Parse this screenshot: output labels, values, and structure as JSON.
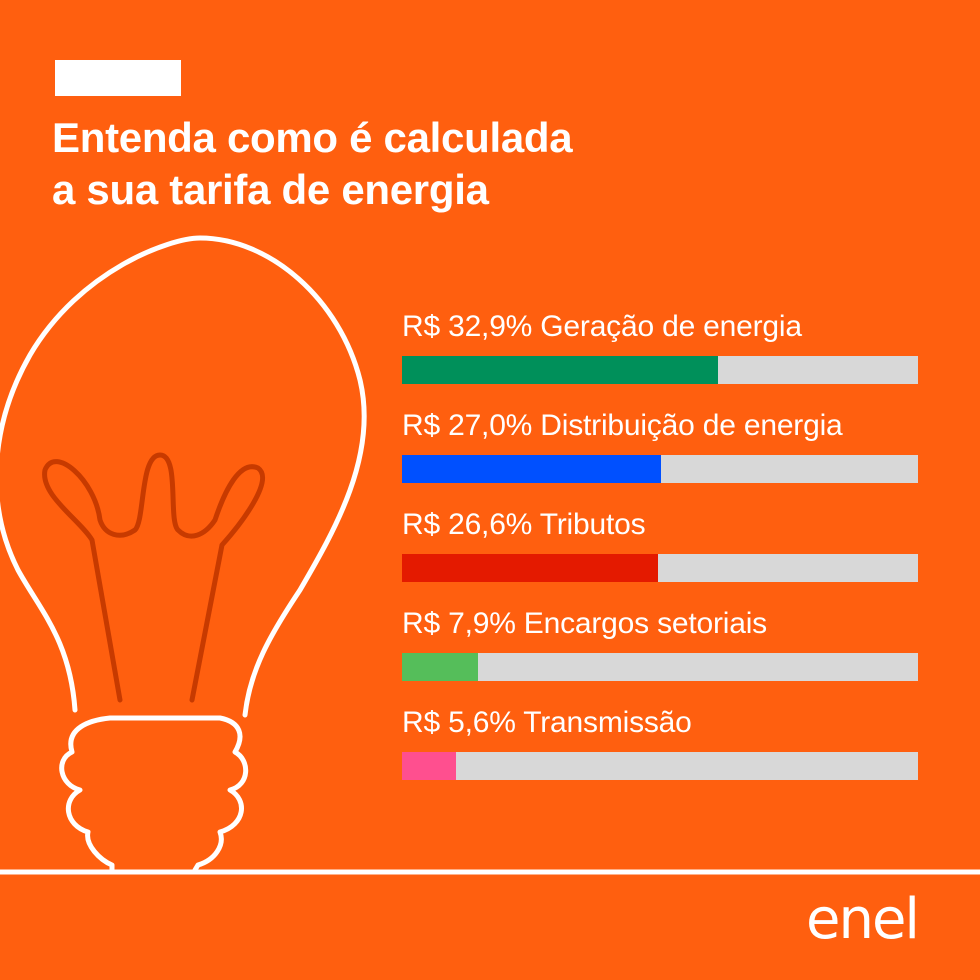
{
  "header": {
    "title_line1": "Entenda como é calculada",
    "title_line2": "a sua tarifa de energia"
  },
  "bars": [
    {
      "label": "R$ 32,9% Geração de energia",
      "value": 32.9,
      "color": "#00905A"
    },
    {
      "label": "R$ 27,0% Distribuição de energia",
      "value": 27.0,
      "color": "#0050FF"
    },
    {
      "label": "R$ 26,6% Tributos",
      "value": 26.6,
      "color": "#E41A00"
    },
    {
      "label": "R$ 7,9% Encargos setoriais",
      "value": 7.9,
      "color": "#55BE5A"
    },
    {
      "label": "R$ 5,6% Transmissão",
      "value": 5.6,
      "color": "#FF4F8F"
    }
  ],
  "logo": {
    "text": "enel"
  },
  "colors": {
    "background": "#FF5F0F",
    "track": "#D8D8D8",
    "filament": "#C73A00",
    "outline": "#FFFFFF"
  }
}
